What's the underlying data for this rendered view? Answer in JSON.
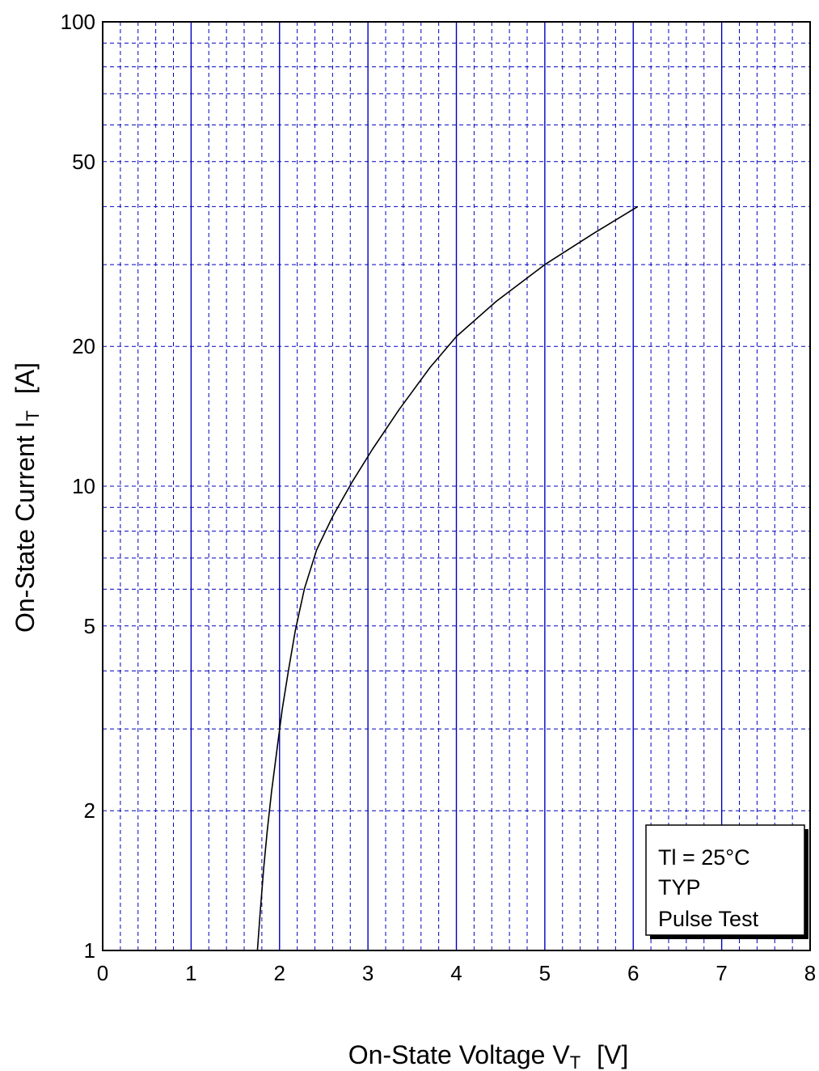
{
  "chart_data": {
    "type": "line",
    "x_scale": "linear",
    "y_scale": "log",
    "xlim": [
      0,
      8
    ],
    "ylim": [
      1,
      100
    ],
    "xticks": [
      0,
      1,
      2,
      3,
      4,
      5,
      6,
      7,
      8
    ],
    "xtick_labels": [
      "0",
      "1",
      "2",
      "3",
      "4",
      "5",
      "6",
      "7",
      "8"
    ],
    "yticks": [
      1,
      2,
      5,
      10,
      20,
      50,
      100
    ],
    "ytick_labels": [
      "1",
      "2",
      "5",
      "10",
      "20",
      "50",
      "100"
    ],
    "x_minor_step": 0.2,
    "y_minor_ticks": [
      3,
      4,
      6,
      7,
      8,
      9,
      30,
      40,
      60,
      70,
      80,
      90
    ],
    "xlabel": {
      "main": "On-State Voltage  V",
      "sub": "T",
      "unit": "[V]"
    },
    "ylabel": {
      "main": "On-State Current    I",
      "sub": "T",
      "unit": "[A]"
    },
    "grid": true,
    "series": [
      {
        "x": [
          1.75,
          1.78,
          1.82,
          1.86,
          1.91,
          1.97,
          2.03,
          2.1,
          2.18,
          2.28,
          2.42,
          2.6,
          2.82,
          3.05,
          3.35,
          3.7,
          4.0,
          4.45,
          5.0,
          5.55,
          6.05
        ],
        "y": [
          1.0,
          1.2,
          1.5,
          1.8,
          2.2,
          2.7,
          3.3,
          4.0,
          4.9,
          6.0,
          7.3,
          8.6,
          10.2,
          12.0,
          14.6,
          18.0,
          21.0,
          25.0,
          30.0,
          35.0,
          40.0
        ]
      }
    ],
    "annotations": [
      "Tl = 25°C",
      "TYP",
      "Pulse Test"
    ],
    "annotation_placement": "bottom-right",
    "colors": {
      "grid": "#0000c0",
      "frame": "#000000",
      "line": "#000000",
      "text": "#000000"
    }
  }
}
